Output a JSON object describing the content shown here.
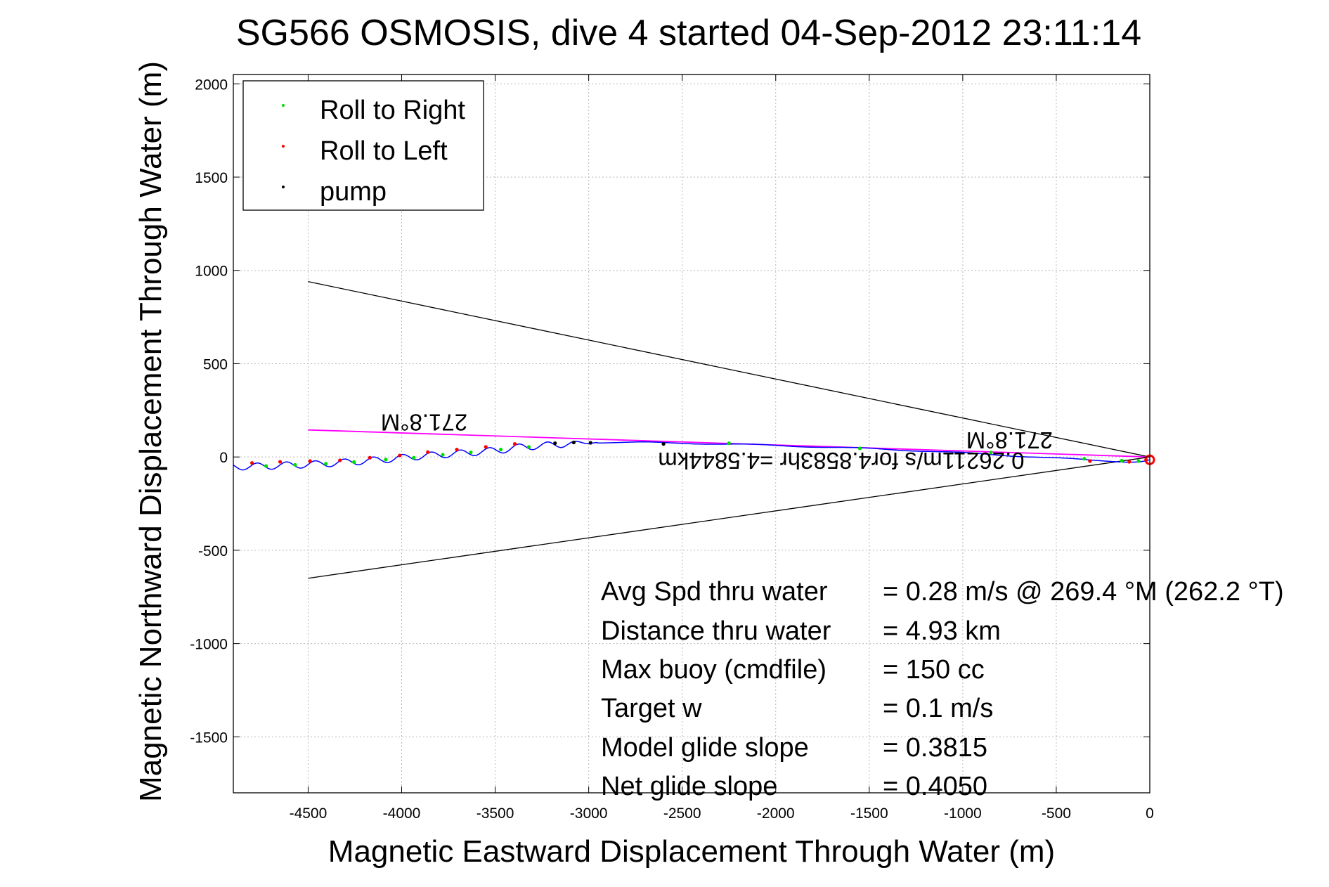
{
  "chart_data": {
    "type": "line",
    "title": "SG566 OSMOSIS, dive 4 started 04-Sep-2012 23:11:14",
    "xlabel": "Magnetic Eastward Displacement Through Water (m)",
    "ylabel": "Magnetic Northward Displacement Through Water (m)",
    "xlim": [
      -4900,
      0
    ],
    "ylim": [
      -1800,
      2050
    ],
    "xticks": [
      -4500,
      -4000,
      -3500,
      -3000,
      -2500,
      -2000,
      -1500,
      -1000,
      -500,
      0
    ],
    "yticks": [
      2000,
      1500,
      1000,
      500,
      0,
      -500,
      -1000,
      -1500
    ],
    "grid": true,
    "legend_position": "top-left",
    "legend": [
      {
        "label": "Roll to Right",
        "color": "#00e000"
      },
      {
        "label": "Roll to Left",
        "color": "#ff0000"
      },
      {
        "label": "pump",
        "color": "#000000"
      }
    ],
    "track": {
      "color": "#0000ff",
      "points": [
        [
          0,
          -15
        ],
        [
          -20,
          -20
        ],
        [
          -60,
          -25
        ],
        [
          -120,
          -25
        ],
        [
          -200,
          -22
        ],
        [
          -300,
          -18
        ],
        [
          -400,
          -12
        ],
        [
          -600,
          0
        ],
        [
          -800,
          10
        ],
        [
          -1000,
          22
        ],
        [
          -1200,
          32
        ],
        [
          -1500,
          45
        ],
        [
          -1800,
          55
        ],
        [
          -2100,
          65
        ],
        [
          -2400,
          72
        ],
        [
          -2700,
          78
        ],
        [
          -2950,
          78
        ],
        [
          -3100,
          72
        ],
        [
          -3250,
          60
        ],
        [
          -3350,
          55
        ],
        [
          -3450,
          40
        ],
        [
          -3550,
          30
        ],
        [
          -3650,
          22
        ],
        [
          -3750,
          15
        ],
        [
          -3850,
          8
        ],
        [
          -3950,
          0
        ],
        [
          -4050,
          -10
        ],
        [
          -4150,
          -18
        ],
        [
          -4250,
          -25
        ],
        [
          -4350,
          -32
        ],
        [
          -4450,
          -38
        ],
        [
          -4550,
          -42
        ],
        [
          -4650,
          -46
        ],
        [
          -4750,
          -50
        ],
        [
          -4900,
          -52
        ]
      ],
      "wiggle_amplitude": 18,
      "wiggle_period": 155,
      "wiggle_start": -2950
    },
    "roll_right_points": [
      [
        -4725,
        -48
      ],
      [
        -4570,
        -42
      ],
      [
        -4405,
        -36
      ],
      [
        -4255,
        -27
      ],
      [
        -4085,
        -14
      ],
      [
        -3935,
        -4
      ],
      [
        -3780,
        12
      ],
      [
        -3630,
        25
      ],
      [
        -3470,
        40
      ],
      [
        -3320,
        54
      ],
      [
        -2250,
        74
      ],
      [
        -1550,
        46
      ],
      [
        -850,
        24
      ],
      [
        -350,
        -10
      ],
      [
        -150,
        -20
      ],
      [
        -60,
        -22
      ]
    ],
    "roll_left_points": [
      [
        -4800,
        -32
      ],
      [
        -4650,
        -26
      ],
      [
        -4490,
        -22
      ],
      [
        -4330,
        -18
      ],
      [
        -4170,
        -4
      ],
      [
        -4010,
        8
      ],
      [
        -3860,
        26
      ],
      [
        -3705,
        40
      ],
      [
        -3550,
        54
      ],
      [
        -3395,
        70
      ],
      [
        -320,
        -22
      ],
      [
        -110,
        -26
      ],
      [
        -20,
        -16
      ]
    ],
    "pump_points": [
      [
        -3180,
        74
      ],
      [
        -3080,
        78
      ],
      [
        -2990,
        76
      ],
      [
        -2600,
        70
      ]
    ],
    "end_marker": [
      0,
      -15
    ],
    "current_lines": {
      "color": "#000000",
      "from": [
        0,
        0
      ],
      "upper_end": [
        -4500,
        940
      ],
      "lower_end": [
        -4500,
        -650
      ]
    },
    "magenta_line": {
      "color": "#ff00ff",
      "from": [
        0,
        0
      ],
      "to": [
        -4500,
        145
      ]
    },
    "annotations": {
      "heading_left": "271.8°M",
      "heading_right": "271.8°M",
      "speed_text": "0.26211m/s for4.8583hr =4.5844km"
    },
    "stats": [
      {
        "label": "Avg Spd thru water",
        "value": "=  0.28 m/s @ 269.4 °M (262.2 °T)"
      },
      {
        "label": "Distance thru water",
        "value": "=  4.93 km"
      },
      {
        "label": "Max buoy (cmdfile)",
        "value": "= 150 cc"
      },
      {
        "label": "Target w",
        "value": "= 0.1 m/s"
      },
      {
        "label": "Model glide slope",
        "value": "= 0.3815"
      },
      {
        "label": "Net glide slope",
        "value": "= 0.4050"
      }
    ]
  }
}
